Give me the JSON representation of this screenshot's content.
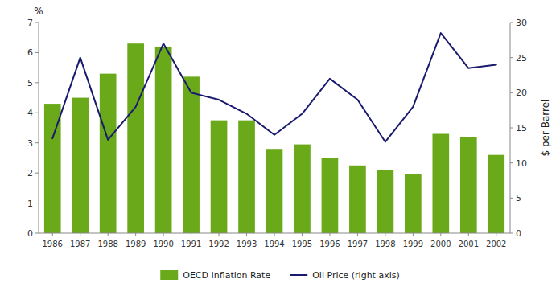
{
  "chart_data": {
    "type": "bar",
    "categories": [
      "1986",
      "1987",
      "1988",
      "1989",
      "1990",
      "1991",
      "1992",
      "1993",
      "1994",
      "1995",
      "1996",
      "1997",
      "1998",
      "1999",
      "2000",
      "2001",
      "2002"
    ],
    "series": [
      {
        "name": "OECD Inflation Rate",
        "type": "bar",
        "color": "#6aaa1a",
        "values": [
          4.3,
          4.5,
          5.3,
          6.3,
          6.2,
          5.2,
          3.75,
          3.75,
          2.8,
          2.95,
          2.5,
          2.25,
          2.1,
          1.95,
          3.3,
          3.2,
          2.6
        ]
      },
      {
        "name": "Oil Price (right axis)",
        "type": "line",
        "color": "#1a1a6e",
        "axis": "y2",
        "values": [
          13.5,
          25.0,
          13.3,
          18.0,
          27.0,
          20.0,
          19.0,
          17.0,
          14.0,
          17.0,
          22.0,
          19.0,
          13.0,
          18.0,
          28.5,
          23.5,
          24.0
        ]
      }
    ],
    "y_label": "%",
    "y2_label": "$ per Barrel",
    "ylim": [
      0,
      7
    ],
    "yticks": [
      0,
      1,
      2,
      3,
      4,
      5,
      6,
      7
    ],
    "y2lim": [
      0,
      30
    ],
    "y2ticks": [
      0,
      5,
      10,
      15,
      20,
      25,
      30
    ],
    "grid": false,
    "legend": "bottom"
  }
}
